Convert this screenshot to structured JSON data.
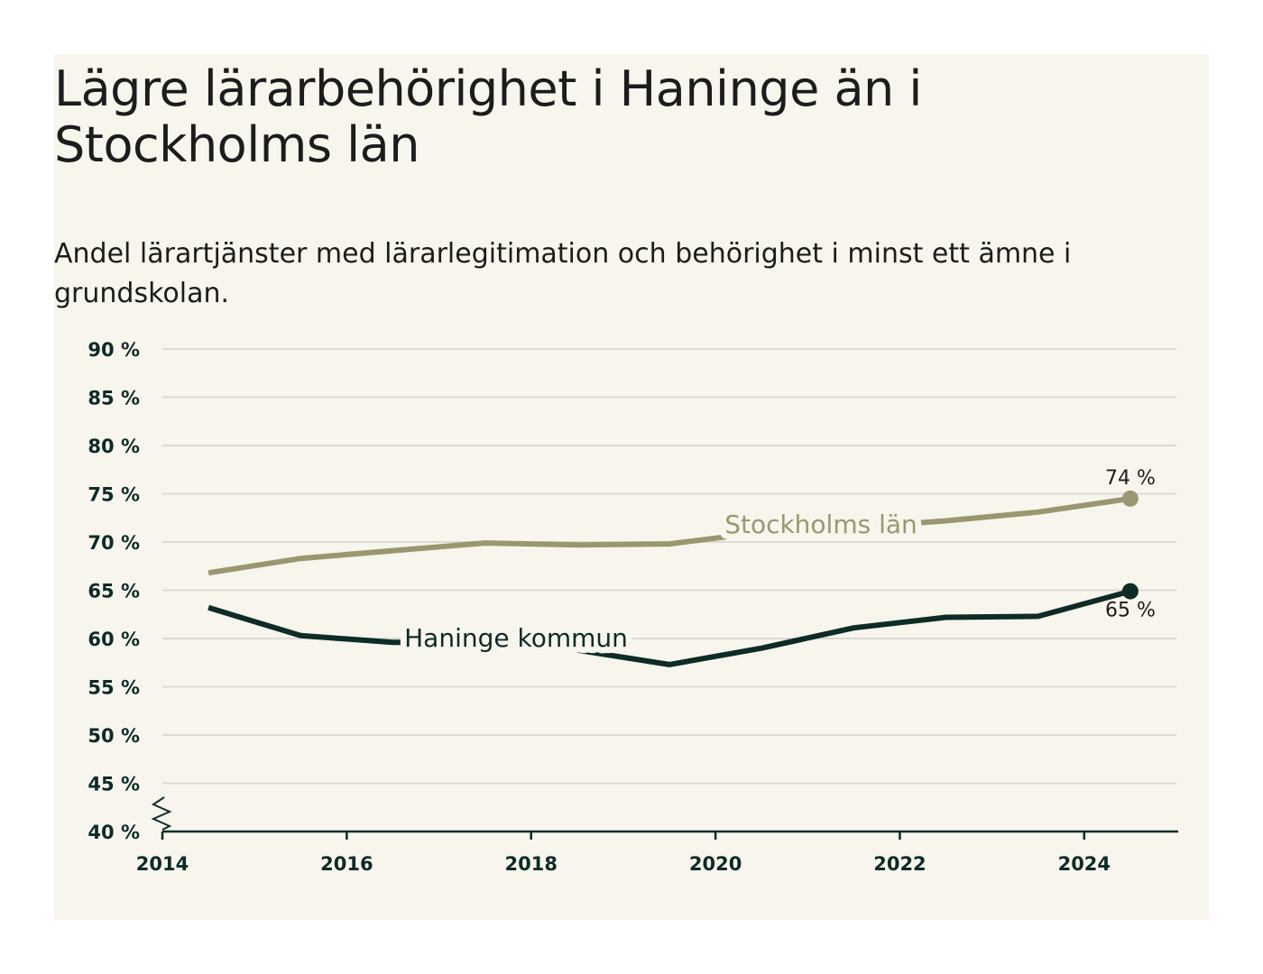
{
  "header": {
    "title": "Lägre lärarbehörighet i Haninge än i Stockholms län",
    "subtitle": "Andel lärartjänster med lärarlegitimation och behörighet i minst ett ämne i grundskolan."
  },
  "chart_data": {
    "type": "line",
    "x_ticks": [
      2014,
      2016,
      2018,
      2020,
      2022,
      2024
    ],
    "xlim": [
      2014,
      2025
    ],
    "y_ticks": [
      "40 %",
      "45 %",
      "50 %",
      "55 %",
      "60 %",
      "65 %",
      "70 %",
      "75 %",
      "80 %",
      "85 %",
      "90 %"
    ],
    "ylim": [
      40,
      90
    ],
    "y_axis_break": true,
    "grid": true,
    "series": [
      {
        "name": "Stockholms län",
        "color": "#9a9770",
        "x": [
          2014.5,
          2015.5,
          2016.5,
          2017.5,
          2018.5,
          2019.5,
          2020.5,
          2021.5,
          2022.5,
          2023.5,
          2024.5
        ],
        "values": [
          66.8,
          68.3,
          69.1,
          69.9,
          69.7,
          69.8,
          71.0,
          71.5,
          72.2,
          73.1,
          74.5
        ],
        "end_label": "74 %"
      },
      {
        "name": "Haninge kommun",
        "color": "#0e2b26",
        "x": [
          2014.5,
          2015.5,
          2016.5,
          2017.5,
          2018.5,
          2019.5,
          2020.5,
          2021.5,
          2022.5,
          2023.5,
          2024.5
        ],
        "values": [
          63.2,
          60.3,
          59.6,
          59.6,
          58.8,
          57.3,
          59.0,
          61.1,
          62.2,
          62.3,
          64.9
        ],
        "end_label": "65 %"
      }
    ]
  }
}
